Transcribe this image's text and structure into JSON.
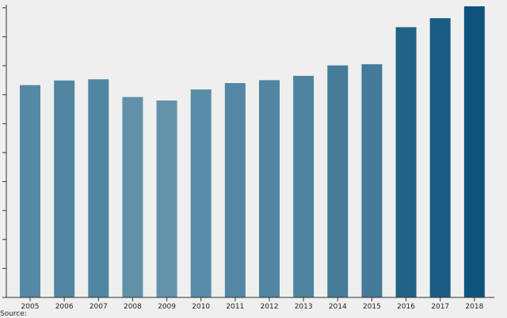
{
  "chart_data": {
    "type": "bar",
    "title": "",
    "xlabel": "",
    "ylabel": "",
    "categories": [
      "2005",
      "2006",
      "2007",
      "2008",
      "2009",
      "2010",
      "2011",
      "2012",
      "2013",
      "2014",
      "2015",
      "2016",
      "2017",
      "2018"
    ],
    "values": [
      7.33,
      7.49,
      7.53,
      6.92,
      6.8,
      7.18,
      7.4,
      7.5,
      7.65,
      8.01,
      8.05,
      9.33,
      9.64,
      10.05
    ],
    "ylim": [
      0,
      10.05
    ],
    "y_ticks": [
      0,
      1,
      2,
      3,
      4,
      5,
      6,
      7,
      8,
      9,
      10
    ],
    "y_tick_labels_visible": false,
    "grid": false,
    "legend": "none",
    "colors": {
      "low": "#6393ab",
      "high": "#0f547d"
    }
  },
  "footer": {
    "source_text": "Source: "
  }
}
